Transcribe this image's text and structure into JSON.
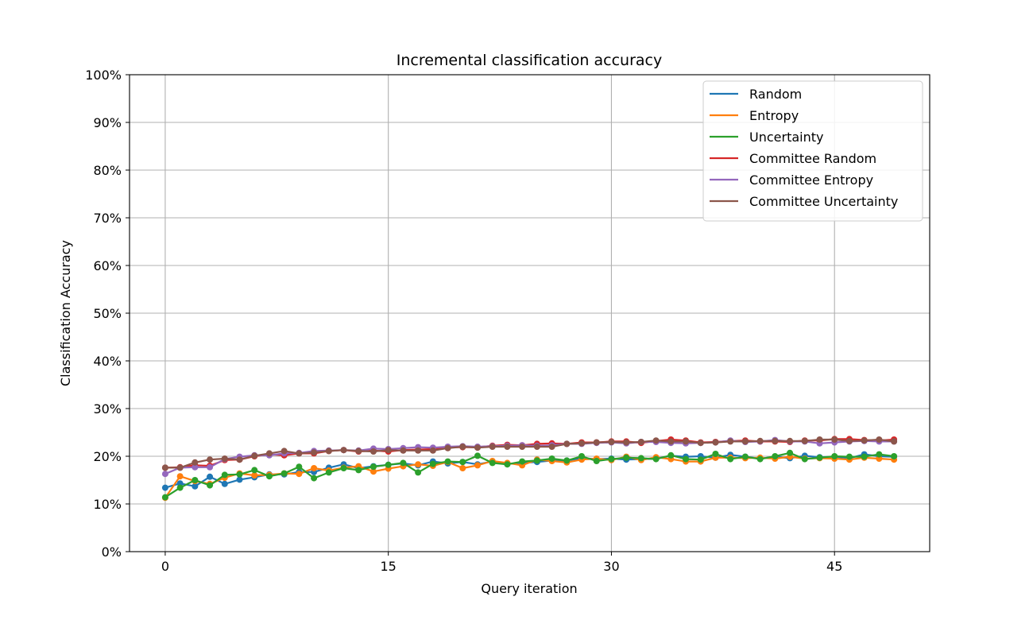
{
  "chart_data": {
    "type": "line",
    "title": "Incremental classification accuracy",
    "xlabel": "Query iteration",
    "ylabel": "Classification Accuracy",
    "xlim": [
      -2.4,
      51.4
    ],
    "ylim": [
      0,
      1
    ],
    "x_ticks": [
      0,
      15,
      30,
      45
    ],
    "x_tick_labels": [
      "0",
      "15",
      "30",
      "45"
    ],
    "y_ticks": [
      0,
      0.1,
      0.2,
      0.3,
      0.4,
      0.5,
      0.6,
      0.7,
      0.8,
      0.9,
      1.0
    ],
    "y_tick_labels": [
      "0%",
      "10%",
      "20%",
      "30%",
      "40%",
      "50%",
      "60%",
      "70%",
      "80%",
      "90%",
      "100%"
    ],
    "grid": true,
    "markers": true,
    "legend_position": "upper right",
    "x": [
      0,
      1,
      2,
      3,
      4,
      5,
      6,
      7,
      8,
      9,
      10,
      11,
      12,
      13,
      14,
      15,
      16,
      17,
      18,
      19,
      20,
      21,
      22,
      23,
      24,
      25,
      26,
      27,
      28,
      29,
      30,
      31,
      32,
      33,
      34,
      35,
      36,
      37,
      38,
      39,
      40,
      41,
      42,
      43,
      44,
      45,
      46,
      47,
      48,
      49
    ],
    "series": [
      {
        "name": "Random",
        "color": "#1f77b4",
        "values": [
          0.134,
          0.143,
          0.137,
          0.157,
          0.142,
          0.151,
          0.156,
          0.162,
          0.162,
          0.167,
          0.167,
          0.176,
          0.183,
          0.175,
          0.179,
          0.182,
          0.185,
          0.181,
          0.189,
          0.185,
          0.188,
          0.183,
          0.189,
          0.184,
          0.186,
          0.188,
          0.191,
          0.191,
          0.196,
          0.194,
          0.195,
          0.193,
          0.194,
          0.195,
          0.201,
          0.199,
          0.2,
          0.197,
          0.203,
          0.199,
          0.195,
          0.199,
          0.196,
          0.201,
          0.198,
          0.199,
          0.196,
          0.204,
          0.2,
          0.199
        ]
      },
      {
        "name": "Entropy",
        "color": "#ff7f0e",
        "values": [
          0.113,
          0.158,
          0.148,
          0.142,
          0.155,
          0.164,
          0.16,
          0.161,
          0.164,
          0.163,
          0.175,
          0.17,
          0.176,
          0.179,
          0.168,
          0.174,
          0.179,
          0.183,
          0.18,
          0.188,
          0.175,
          0.181,
          0.19,
          0.186,
          0.181,
          0.193,
          0.19,
          0.187,
          0.193,
          0.195,
          0.192,
          0.199,
          0.192,
          0.198,
          0.194,
          0.189,
          0.189,
          0.197,
          0.197,
          0.196,
          0.197,
          0.195,
          0.199,
          0.195,
          0.196,
          0.195,
          0.193,
          0.197,
          0.195,
          0.193
        ]
      },
      {
        "name": "Uncertainty",
        "color": "#2ca02c",
        "values": [
          0.114,
          0.134,
          0.15,
          0.139,
          0.161,
          0.162,
          0.171,
          0.158,
          0.164,
          0.178,
          0.154,
          0.166,
          0.175,
          0.171,
          0.178,
          0.182,
          0.186,
          0.166,
          0.184,
          0.189,
          0.188,
          0.201,
          0.186,
          0.183,
          0.189,
          0.191,
          0.195,
          0.191,
          0.2,
          0.19,
          0.194,
          0.197,
          0.196,
          0.194,
          0.202,
          0.194,
          0.193,
          0.205,
          0.194,
          0.199,
          0.194,
          0.2,
          0.207,
          0.194,
          0.197,
          0.2,
          0.199,
          0.199,
          0.204,
          0.2
        ]
      },
      {
        "name": "Committee Random",
        "color": "#d62728",
        "values": [
          0.176,
          0.177,
          0.181,
          0.18,
          0.192,
          0.193,
          0.2,
          0.204,
          0.202,
          0.206,
          0.206,
          0.211,
          0.213,
          0.21,
          0.212,
          0.21,
          0.213,
          0.214,
          0.215,
          0.219,
          0.219,
          0.219,
          0.222,
          0.224,
          0.223,
          0.226,
          0.227,
          0.226,
          0.229,
          0.229,
          0.231,
          0.231,
          0.228,
          0.232,
          0.235,
          0.233,
          0.229,
          0.23,
          0.232,
          0.233,
          0.231,
          0.231,
          0.23,
          0.233,
          0.233,
          0.236,
          0.236,
          0.234,
          0.233,
          0.235
        ]
      },
      {
        "name": "Committee Entropy",
        "color": "#9467bd",
        "values": [
          0.163,
          0.176,
          0.177,
          0.177,
          0.194,
          0.199,
          0.202,
          0.202,
          0.206,
          0.207,
          0.211,
          0.212,
          0.213,
          0.212,
          0.216,
          0.215,
          0.217,
          0.219,
          0.218,
          0.22,
          0.221,
          0.22,
          0.221,
          0.222,
          0.223,
          0.222,
          0.223,
          0.226,
          0.226,
          0.228,
          0.229,
          0.227,
          0.23,
          0.23,
          0.228,
          0.227,
          0.228,
          0.229,
          0.233,
          0.23,
          0.231,
          0.234,
          0.231,
          0.231,
          0.227,
          0.229,
          0.231,
          0.232,
          0.231,
          0.231
        ]
      },
      {
        "name": "Committee Uncertainty",
        "color": "#8c564b",
        "values": [
          0.176,
          0.176,
          0.187,
          0.193,
          0.195,
          0.193,
          0.201,
          0.206,
          0.211,
          0.206,
          0.208,
          0.211,
          0.213,
          0.211,
          0.21,
          0.213,
          0.212,
          0.212,
          0.212,
          0.217,
          0.22,
          0.218,
          0.22,
          0.22,
          0.22,
          0.22,
          0.22,
          0.226,
          0.227,
          0.229,
          0.23,
          0.229,
          0.23,
          0.233,
          0.231,
          0.231,
          0.228,
          0.229,
          0.231,
          0.231,
          0.232,
          0.232,
          0.232,
          0.232,
          0.235,
          0.235,
          0.232,
          0.233,
          0.235,
          0.231
        ]
      }
    ]
  }
}
